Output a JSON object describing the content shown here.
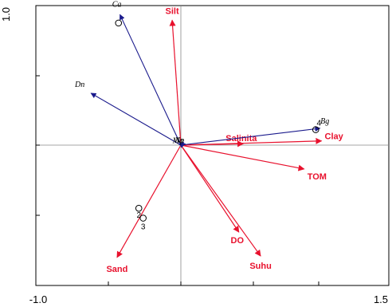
{
  "chart_data": {
    "type": "scatter",
    "subtype": "ordination-biplot",
    "x_ticks": [
      "-1.0",
      "1.5"
    ],
    "y_tick_top": "1.0",
    "xlim": [
      -1.0,
      1.5
    ],
    "ylim": [
      -1.0,
      1.0
    ],
    "colors": {
      "environment": "#e8112d",
      "species": "#1a1a8c",
      "frame": "#000000"
    },
    "environment_vectors": [
      {
        "name": "Silt",
        "x": -0.06,
        "y": 0.89
      },
      {
        "name": "Salinita",
        "x": 0.43,
        "y": 0.01
      },
      {
        "name": "Clay",
        "x": 0.97,
        "y": 0.03
      },
      {
        "name": "TOM",
        "x": 0.85,
        "y": -0.17
      },
      {
        "name": "DO",
        "x": 0.4,
        "y": -0.62
      },
      {
        "name": "Suhu",
        "x": 0.55,
        "y": -0.79
      },
      {
        "name": "Sand",
        "x": -0.44,
        "y": -0.8
      }
    ],
    "species_vectors": [
      {
        "name": "Ca",
        "x": -0.42,
        "y": 0.93
      },
      {
        "name": "Dn",
        "x": -0.62,
        "y": 0.37
      },
      {
        "name": "Bg",
        "x": 0.96,
        "y": 0.12
      },
      {
        "name": "Ma",
        "x": 0.02,
        "y": 0.02
      },
      {
        "name": "Np",
        "x": 0.03,
        "y": 0.01
      }
    ],
    "sites": [
      {
        "label": "",
        "x": -0.43,
        "y": 0.87
      },
      {
        "label": "4",
        "x": 0.93,
        "y": 0.11
      },
      {
        "label": "2",
        "x": -0.29,
        "y": -0.45
      },
      {
        "label": "3",
        "x": -0.26,
        "y": -0.52
      }
    ]
  }
}
